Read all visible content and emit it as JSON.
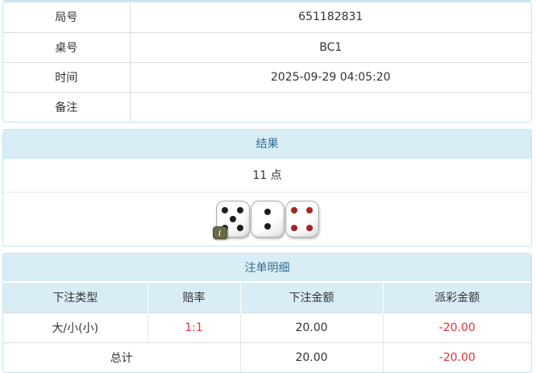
{
  "colors": {
    "panel_border": "#bce8f1",
    "panel_heading_bg": "#d9edf7",
    "panel_heading_text": "#31708f",
    "row_divider": "#dddddd",
    "negative": "#e23333",
    "text": "#333333"
  },
  "info_table": {
    "rows": [
      {
        "label": "局号",
        "value": "651182831"
      },
      {
        "label": "桌号",
        "value": "BC1"
      },
      {
        "label": "时间",
        "value": "2025-09-29 04:05:20"
      },
      {
        "label": "备注",
        "value": ""
      }
    ]
  },
  "result_panel": {
    "title": "结果",
    "points_text": "11 点",
    "dice": [
      {
        "value": 5,
        "pip_color": "#1c1c1c",
        "badge": "i"
      },
      {
        "value": 2,
        "pip_color": "#1c1c1c"
      },
      {
        "value": 4,
        "pip_color": "#b22020"
      }
    ]
  },
  "bet_panel": {
    "title": "注单明细",
    "columns": [
      "下注类型",
      "赔率",
      "下注金额",
      "派彩金额"
    ],
    "rows": [
      {
        "bet_type": "大/小(小)",
        "odds": "1:1",
        "bet_amount": "20.00",
        "payout": "-20.00"
      }
    ],
    "total": {
      "label": "总计",
      "bet_amount": "20.00",
      "payout": "-20.00"
    }
  }
}
